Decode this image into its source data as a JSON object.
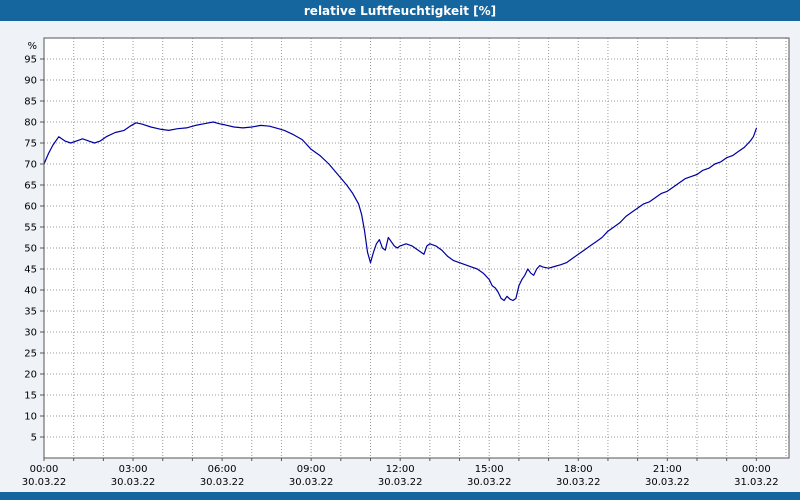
{
  "title_bar": {
    "title": "relative Luftfeuchtigkeit [%]"
  },
  "colors": {
    "title_bar": "#15659f",
    "title_text": "#ffffff",
    "background": "#eff3f8",
    "plot_bg": "#ffffff",
    "grid": "#999999",
    "border": "#555555",
    "axis_text": "#000000",
    "line": "#0000a0",
    "bottom_bar": "#15659f"
  },
  "chart_data": {
    "type": "line",
    "title": "relative Luftfeuchtigkeit [%]",
    "xlabel": "",
    "ylabel": "%",
    "unit": "%",
    "series_name": "relative Luftfeuchtigkeit",
    "grid": true,
    "legend": "none",
    "xlim": [
      0,
      25.1
    ],
    "ylim": [
      0,
      100
    ],
    "yticks": [
      5,
      10,
      15,
      20,
      25,
      30,
      35,
      40,
      45,
      50,
      55,
      60,
      65,
      70,
      75,
      80,
      85,
      90,
      95
    ],
    "xticks": [
      {
        "hour": 0,
        "time": "00:00",
        "date": "30.03.22"
      },
      {
        "hour": 3,
        "time": "03:00",
        "date": "30.03.22"
      },
      {
        "hour": 6,
        "time": "06:00",
        "date": "30.03.22"
      },
      {
        "hour": 9,
        "time": "09:00",
        "date": "30.03.22"
      },
      {
        "hour": 12,
        "time": "12:00",
        "date": "30.03.22"
      },
      {
        "hour": 15,
        "time": "15:00",
        "date": "30.03.22"
      },
      {
        "hour": 18,
        "time": "18:00",
        "date": "30.03.22"
      },
      {
        "hour": 21,
        "time": "21:00",
        "date": "30.03.22"
      },
      {
        "hour": 24,
        "time": "00:00",
        "date": "31.03.22"
      }
    ],
    "points": [
      [
        0,
        70
      ],
      [
        0.15,
        72.5
      ],
      [
        0.3,
        74.5
      ],
      [
        0.5,
        76.5
      ],
      [
        0.7,
        75.5
      ],
      [
        0.9,
        75
      ],
      [
        1.1,
        75.5
      ],
      [
        1.3,
        76
      ],
      [
        1.5,
        75.5
      ],
      [
        1.7,
        75
      ],
      [
        1.9,
        75.5
      ],
      [
        2.1,
        76.5
      ],
      [
        2.4,
        77.5
      ],
      [
        2.7,
        78
      ],
      [
        2.9,
        79
      ],
      [
        3.1,
        79.8
      ],
      [
        3.3,
        79.5
      ],
      [
        3.6,
        78.8
      ],
      [
        3.9,
        78.3
      ],
      [
        4.2,
        78
      ],
      [
        4.5,
        78.4
      ],
      [
        4.8,
        78.6
      ],
      [
        5.1,
        79.2
      ],
      [
        5.4,
        79.6
      ],
      [
        5.7,
        80
      ],
      [
        5.9,
        79.6
      ],
      [
        6.1,
        79.3
      ],
      [
        6.4,
        78.8
      ],
      [
        6.7,
        78.6
      ],
      [
        7,
        78.8
      ],
      [
        7.3,
        79.2
      ],
      [
        7.6,
        79
      ],
      [
        7.9,
        78.4
      ],
      [
        8.1,
        78
      ],
      [
        8.4,
        77
      ],
      [
        8.7,
        75.8
      ],
      [
        9,
        73.5
      ],
      [
        9.3,
        72
      ],
      [
        9.6,
        70
      ],
      [
        9.9,
        67.5
      ],
      [
        10.2,
        65
      ],
      [
        10.4,
        63
      ],
      [
        10.6,
        60.5
      ],
      [
        10.7,
        58
      ],
      [
        10.8,
        54
      ],
      [
        10.9,
        49
      ],
      [
        11,
        46.5
      ],
      [
        11.1,
        49
      ],
      [
        11.2,
        51
      ],
      [
        11.3,
        52
      ],
      [
        11.4,
        50
      ],
      [
        11.5,
        49.5
      ],
      [
        11.6,
        52.5
      ],
      [
        11.7,
        51.5
      ],
      [
        11.8,
        50.5
      ],
      [
        11.9,
        50
      ],
      [
        12,
        50.5
      ],
      [
        12.2,
        51
      ],
      [
        12.4,
        50.5
      ],
      [
        12.6,
        49.5
      ],
      [
        12.8,
        48.5
      ],
      [
        12.9,
        50.5
      ],
      [
        13,
        51
      ],
      [
        13.2,
        50.5
      ],
      [
        13.4,
        49.5
      ],
      [
        13.6,
        48
      ],
      [
        13.8,
        47
      ],
      [
        14,
        46.5
      ],
      [
        14.2,
        46
      ],
      [
        14.4,
        45.5
      ],
      [
        14.6,
        45
      ],
      [
        14.8,
        44
      ],
      [
        15,
        42.5
      ],
      [
        15.1,
        41
      ],
      [
        15.2,
        40.5
      ],
      [
        15.3,
        39.5
      ],
      [
        15.4,
        38
      ],
      [
        15.5,
        37.5
      ],
      [
        15.6,
        38.5
      ],
      [
        15.7,
        37.8
      ],
      [
        15.8,
        37.5
      ],
      [
        15.9,
        38
      ],
      [
        16,
        41
      ],
      [
        16.1,
        42.5
      ],
      [
        16.2,
        43.5
      ],
      [
        16.3,
        45
      ],
      [
        16.4,
        44
      ],
      [
        16.5,
        43.5
      ],
      [
        16.6,
        45
      ],
      [
        16.7,
        45.8
      ],
      [
        16.8,
        45.5
      ],
      [
        17,
        45.2
      ],
      [
        17.2,
        45.6
      ],
      [
        17.4,
        46
      ],
      [
        17.6,
        46.5
      ],
      [
        17.8,
        47.5
      ],
      [
        18,
        48.5
      ],
      [
        18.2,
        49.5
      ],
      [
        18.4,
        50.5
      ],
      [
        18.6,
        51.5
      ],
      [
        18.8,
        52.5
      ],
      [
        19,
        54
      ],
      [
        19.2,
        55
      ],
      [
        19.4,
        56
      ],
      [
        19.6,
        57.5
      ],
      [
        19.8,
        58.5
      ],
      [
        20,
        59.5
      ],
      [
        20.2,
        60.5
      ],
      [
        20.4,
        61
      ],
      [
        20.6,
        62
      ],
      [
        20.8,
        63
      ],
      [
        21,
        63.5
      ],
      [
        21.2,
        64.5
      ],
      [
        21.4,
        65.5
      ],
      [
        21.6,
        66.5
      ],
      [
        21.8,
        67
      ],
      [
        22,
        67.5
      ],
      [
        22.2,
        68.5
      ],
      [
        22.4,
        69
      ],
      [
        22.6,
        70
      ],
      [
        22.8,
        70.5
      ],
      [
        23,
        71.5
      ],
      [
        23.2,
        72
      ],
      [
        23.4,
        73
      ],
      [
        23.6,
        74
      ],
      [
        23.8,
        75.5
      ],
      [
        23.9,
        76.5
      ],
      [
        24,
        78.5
      ]
    ]
  }
}
